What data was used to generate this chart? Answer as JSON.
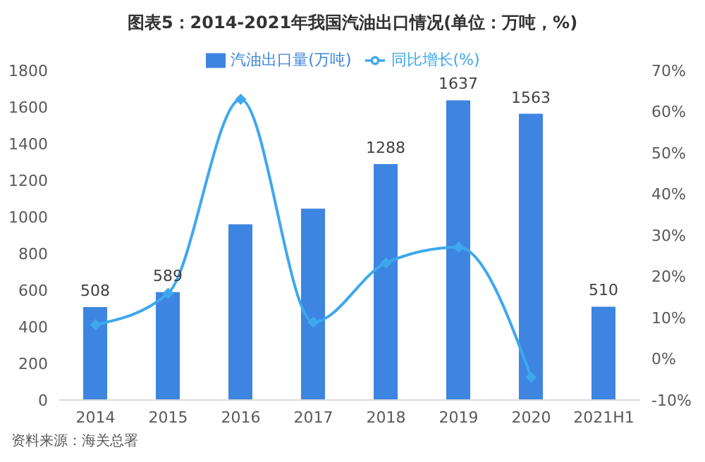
{
  "chart_data": {
    "type": "bar",
    "title": "图表5：2014-2021年我国汽油出口情况(单位：万吨，%)",
    "categories": [
      "2014",
      "2015",
      "2016",
      "2017",
      "2018",
      "2019",
      "2020",
      "2021H1"
    ],
    "series": [
      {
        "name": "汽油出口量(万吨)",
        "color": "#3d85e0",
        "values": [
          508,
          589,
          960,
          1045,
          1288,
          1637,
          1563,
          510
        ],
        "value_labels": [
          "508",
          "589",
          null,
          null,
          "1288",
          "1637",
          "1563",
          "510"
        ]
      },
      {
        "name": "同比增长(%)",
        "type": "line",
        "axis": "y2",
        "color": "#3ea8ee",
        "values": [
          8.3,
          15.9,
          63,
          8.9,
          23.3,
          27.1,
          -4.5,
          null
        ],
        "marker": "diamond"
      }
    ],
    "ylim": [
      0,
      1800
    ],
    "yticks": [
      0,
      200,
      400,
      600,
      800,
      1000,
      1200,
      1400,
      1600,
      1800
    ],
    "y2lim": [
      -10,
      70
    ],
    "y2ticks": [
      {
        "value": -10,
        "label": "-10%"
      },
      {
        "value": 0,
        "label": "0%"
      },
      {
        "value": 10,
        "label": "10%"
      },
      {
        "value": 20,
        "label": "20%"
      },
      {
        "value": 30,
        "label": "30%"
      },
      {
        "value": 40,
        "label": "40%"
      },
      {
        "value": 50,
        "label": "50%"
      },
      {
        "value": 60,
        "label": "60%"
      },
      {
        "value": 70,
        "label": "70%"
      }
    ],
    "grid": false,
    "legend": "top",
    "annotations": [
      "资料来源：海关总署"
    ]
  }
}
